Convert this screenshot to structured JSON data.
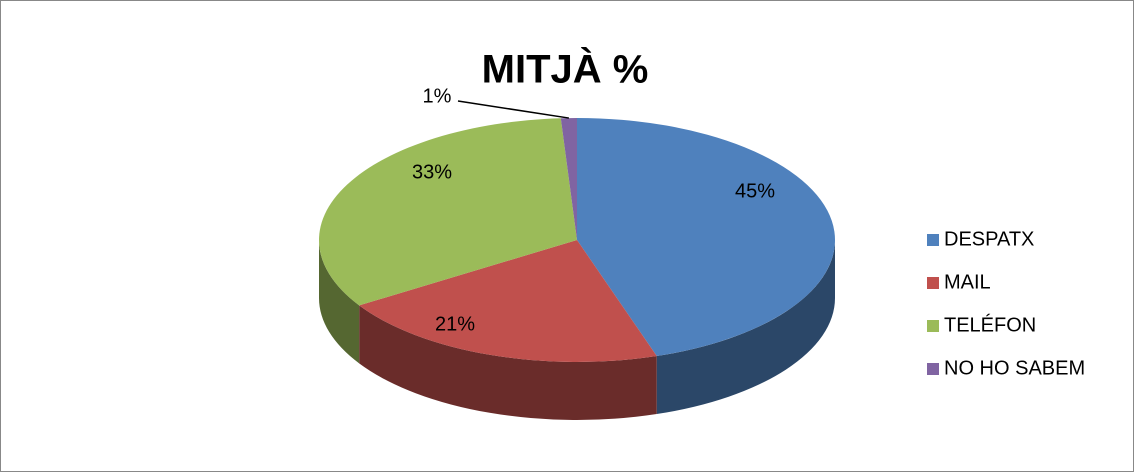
{
  "chart_data": {
    "type": "pie",
    "title": "MITJÀ %",
    "categories": [
      "DESPATX",
      "MAIL",
      "TELÉFON",
      "NO HO SABEM"
    ],
    "values": [
      45,
      21,
      33,
      1
    ],
    "value_labels": [
      "45%",
      "21%",
      "33%",
      "1%"
    ],
    "colors": [
      "#4f81bd",
      "#c0504d",
      "#9bbb59",
      "#8064a2"
    ],
    "legend": "right"
  }
}
